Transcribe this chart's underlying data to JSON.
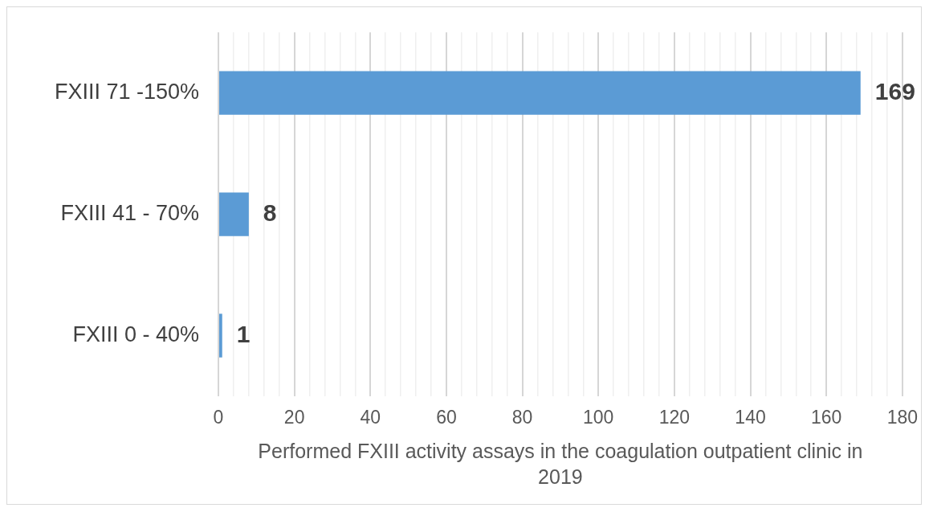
{
  "chart_data": {
    "type": "bar",
    "orientation": "horizontal",
    "categories": [
      "FXIII 71 -150%",
      "FXIII 41 - 70%",
      "FXIII 0 - 40%"
    ],
    "values": [
      169,
      8,
      1
    ],
    "color": "#5b9bd5",
    "data_labels": true,
    "xlabel": "Performed FXIII activity assays in the coagulation outpatient clinic in 2019",
    "xlim": [
      0,
      180
    ],
    "xticks": [
      0,
      {
        "value": 4,
        "label": null
      },
      {
        "value": 8,
        "label": null
      },
      {
        "value": 12,
        "label": null
      },
      {
        "value": 16,
        "label": null
      },
      20,
      {
        "value": 24,
        "label": null
      },
      {
        "value": 28,
        "label": null
      },
      {
        "value": 32,
        "label": null
      },
      {
        "value": 36,
        "label": null
      },
      40,
      {
        "value": 44,
        "label": null
      },
      {
        "value": 48,
        "label": null
      },
      {
        "value": 52,
        "label": null
      },
      {
        "value": 56,
        "label": null
      },
      60,
      {
        "value": 64,
        "label": null
      },
      {
        "value": 68,
        "label": null
      },
      {
        "value": 72,
        "label": null
      },
      {
        "value": 76,
        "label": null
      },
      80,
      {
        "value": 84,
        "label": null
      },
      {
        "value": 88,
        "label": null
      },
      {
        "value": 92,
        "label": null
      },
      {
        "value": 96,
        "label": null
      },
      100,
      {
        "value": 104,
        "label": null
      },
      {
        "value": 108,
        "label": null
      },
      {
        "value": 112,
        "label": null
      },
      {
        "value": 116,
        "label": null
      },
      120,
      {
        "value": 124,
        "label": null
      },
      {
        "value": 128,
        "label": null
      },
      {
        "value": 132,
        "label": null
      },
      {
        "value": 136,
        "label": null
      },
      140,
      {
        "value": 144,
        "label": null
      },
      {
        "value": 148,
        "label": null
      },
      {
        "value": 152,
        "label": null
      },
      {
        "value": 156,
        "label": null
      },
      160,
      {
        "value": 164,
        "label": null
      },
      {
        "value": 168,
        "label": null
      },
      {
        "value": 172,
        "label": null
      },
      {
        "value": 176,
        "label": null
      },
      180
    ],
    "grid": "x"
  }
}
